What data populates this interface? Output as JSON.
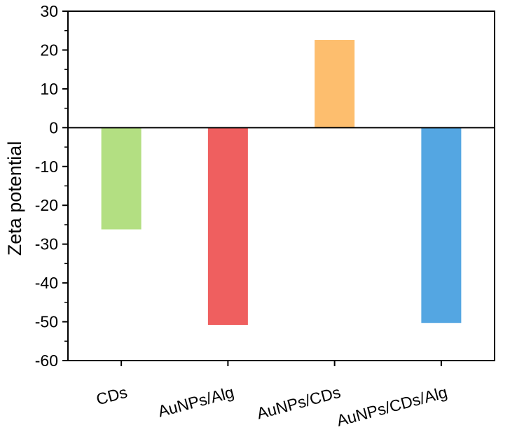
{
  "chart_data": {
    "type": "bar",
    "title": "",
    "xlabel": "",
    "ylabel": "Zeta potential",
    "ylim": [
      -60,
      30
    ],
    "yticks": [
      30,
      20,
      10,
      0,
      -10,
      -20,
      -30,
      -40,
      -50,
      -60
    ],
    "grid": false,
    "categories": [
      "CDs",
      "AuNPs/Alg",
      "AuNPs/CDs",
      "AuNPs/CDs/Alg"
    ],
    "values": [
      -26.2,
      -50.8,
      22.6,
      -50.3
    ],
    "colors": [
      "#b3df82",
      "#ef5f5f",
      "#fdbe6e",
      "#54a6e2"
    ]
  }
}
